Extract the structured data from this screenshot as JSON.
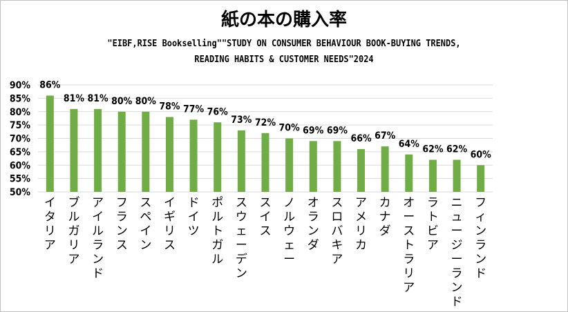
{
  "chart_data": {
    "type": "bar",
    "title": "紙の本の購入率",
    "subtitle_lines": [
      "\"EIBF,RISE Bookselling\"\"STUDY ON CONSUMER BEHAVIOUR BOOK-BUYING TRENDS,",
      "READING HABITS & CUSTOMER NEEDS\"2024"
    ],
    "categories": [
      "イタリア",
      "ブルガリア",
      "アイルランド",
      "フランス",
      "スペイン",
      "イギリス",
      "ドイツ",
      "ポルトガル",
      "スウェーデン",
      "スイス",
      "ノルウェー",
      "オランダ",
      "スロバキア",
      "アメリカ",
      "カナダ",
      "オーストラリア",
      "ラトビア",
      "ニュージーランド",
      "フィンランド"
    ],
    "values": [
      86,
      81,
      81,
      80,
      80,
      78,
      77,
      76,
      73,
      72,
      70,
      69,
      69,
      66,
      67,
      64,
      62,
      62,
      60
    ],
    "data_labels": [
      "86%",
      "81%",
      "81%",
      "80%",
      "80%",
      "78%",
      "77%",
      "76%",
      "73%",
      "72%",
      "70%",
      "69%",
      "69%",
      "66%",
      "67%",
      "64%",
      "62%",
      "62%",
      "60%"
    ],
    "ylim": [
      50,
      90
    ],
    "yticks": [
      50,
      55,
      60,
      65,
      70,
      75,
      80,
      85,
      90
    ],
    "ytick_labels": [
      "50%",
      "55%",
      "60%",
      "65%",
      "70%",
      "75%",
      "80%",
      "85%",
      "90%"
    ],
    "xlabel": "",
    "ylabel": "",
    "grid": true,
    "bar_color": "#70ad47",
    "grid_color": "#d9d9d9"
  }
}
